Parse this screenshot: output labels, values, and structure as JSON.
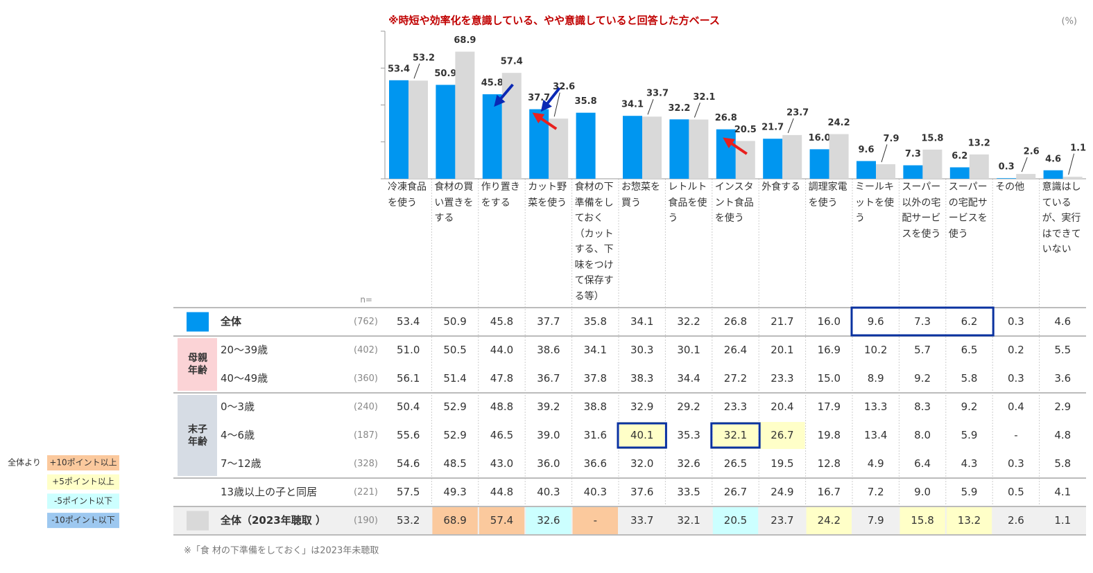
{
  "header": {
    "title": "※時短や効率化を意識している、やや意識していると回答した方ベース",
    "unit": "(%)"
  },
  "chart_data": {
    "type": "bar",
    "categories": [
      "冷凍食品を使う",
      "食材の買い置きをする",
      "作り置きをする",
      "カット野菜を使う",
      "食材の下準備をしておく（カットする、下味をつけて保存する等）",
      "お惣菜を買う",
      "レトルト食品を使う",
      "インスタント食品を使う",
      "外食する",
      "調理家電を使う",
      "ミールキットを使う",
      "スーパー以外の宅配サービスを使う",
      "スーパーの宅配サービスを使う",
      "その他",
      "意識はしているが、実行はできていない"
    ],
    "series": [
      {
        "name": "全体",
        "color": "#0096f0",
        "values": [
          53.4,
          50.9,
          45.8,
          37.7,
          35.8,
          34.1,
          32.2,
          26.8,
          21.7,
          16.0,
          9.6,
          7.3,
          6.2,
          0.3,
          4.6
        ],
        "value_labels": [
          "53.4",
          "50.9",
          "45.8",
          "37.7",
          "35.8",
          "34.1",
          "32.2",
          "26.8",
          "21.7",
          "16.0",
          "9.6",
          "7.3",
          "6.2",
          "0.3",
          "4.6"
        ]
      },
      {
        "name": "全体（2023年聴取 ）",
        "color": "#d9d9d9",
        "values": [
          53.2,
          68.9,
          57.4,
          32.6,
          null,
          33.7,
          32.1,
          20.5,
          23.7,
          24.2,
          7.9,
          15.8,
          13.2,
          2.6,
          1.1
        ]
      }
    ],
    "ylim": [
      0,
      80
    ],
    "yticks": [
      0,
      20,
      40,
      60,
      80
    ]
  },
  "table": {
    "n_label": "n=",
    "rows": [
      {
        "series": 0,
        "n": "(762)",
        "cells": [
          "53.4",
          "50.9",
          "45.8",
          "37.7",
          "35.8",
          "34.1",
          "32.2",
          "26.8",
          "21.7",
          "16.0",
          "9.6",
          "7.3",
          "6.2",
          "0.3",
          "4.6"
        ]
      },
      {
        "group": "母親年齢",
        "color": "#fbd3d6",
        "rows": [
          {
            "label": "20～39歳",
            "n": "(402)",
            "cells": [
              "51.0",
              "50.5",
              "44.0",
              "38.6",
              "34.1",
              "30.3",
              "30.1",
              "26.4",
              "20.1",
              "16.9",
              "10.2",
              "5.7",
              "6.5",
              "0.2",
              "5.5"
            ]
          },
          {
            "label": "40～49歳",
            "n": "(360)",
            "cells": [
              "56.1",
              "51.4",
              "47.8",
              "36.7",
              "37.8",
              "38.3",
              "34.4",
              "27.2",
              "23.3",
              "15.0",
              "8.9",
              "9.2",
              "5.8",
              "0.3",
              "3.6"
            ]
          }
        ]
      },
      {
        "group": "末子年齢",
        "color": "#d6dce4",
        "rows": [
          {
            "label": "0～3歳",
            "n": "(240)",
            "cells": [
              "50.4",
              "52.9",
              "48.8",
              "39.2",
              "38.8",
              "32.9",
              "29.2",
              "23.3",
              "20.4",
              "17.9",
              "13.3",
              "8.3",
              "9.2",
              "0.4",
              "2.9"
            ]
          },
          {
            "label": "4～6歳",
            "n": "(187)",
            "cells": [
              "55.6",
              "52.9",
              "46.5",
              "39.0",
              "31.6",
              "40.1",
              "35.3",
              "32.1",
              "26.7",
              "19.8",
              "13.4",
              "8.0",
              "5.9",
              "-",
              "4.8"
            ],
            "highlight": [
              null,
              null,
              null,
              null,
              null,
              "#ffffc8",
              null,
              "#ffffc8",
              "#ffffc8",
              null,
              null,
              null,
              null,
              null,
              null
            ]
          },
          {
            "label": "7～12歳",
            "n": "(328)",
            "cells": [
              "54.6",
              "48.5",
              "43.0",
              "36.0",
              "36.6",
              "32.0",
              "32.6",
              "26.5",
              "19.5",
              "12.8",
              "4.9",
              "6.4",
              "4.3",
              "0.3",
              "5.8"
            ]
          }
        ]
      },
      {
        "label": "13歳以上の子と同居",
        "n": "(221)",
        "cells": [
          "57.5",
          "49.3",
          "44.8",
          "40.3",
          "40.3",
          "37.6",
          "33.5",
          "26.7",
          "24.9",
          "16.7",
          "7.2",
          "9.0",
          "5.9",
          "0.5",
          "4.1"
        ]
      },
      {
        "series": 1,
        "n": "(190)",
        "background": "#f0f0f0",
        "cells": [
          "53.2",
          "68.9",
          "57.4",
          "32.6",
          "-",
          "33.7",
          "32.1",
          "20.5",
          "23.7",
          "24.2",
          "7.9",
          "15.8",
          "13.2",
          "2.6",
          "1.1"
        ],
        "highlight": [
          null,
          "#fbc99d",
          "#fbc99d",
          "#ccffff",
          "#fbc99d",
          null,
          null,
          "#ccffff",
          null,
          "#ffffc8",
          null,
          "#ffffc8",
          "#ffffc8",
          null,
          null
        ]
      }
    ]
  },
  "legend": {
    "title": "全体より",
    "items": [
      {
        "label": "+10ポイント以上",
        "color": "#fbc99d"
      },
      {
        "label": "+5ポイント以上",
        "color": "#ffffc8"
      },
      {
        "label": "-5ポイント以下",
        "color": "#ccffff"
      },
      {
        "label": "-10ポイント以下",
        "color": "#9dc8f0"
      }
    ]
  },
  "footnote": "※「食 材の下準備をしておく」は2023年未聴取"
}
